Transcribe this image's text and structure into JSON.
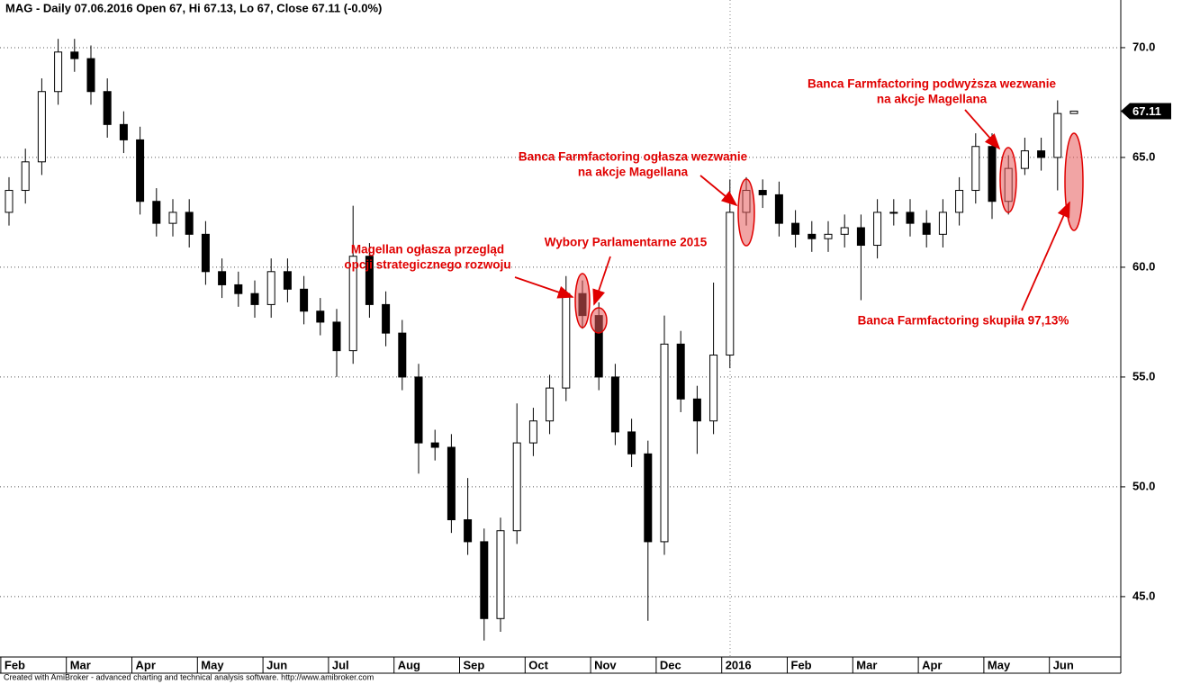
{
  "chart_data": {
    "type": "candlestick",
    "title": "MAG - Daily 07.06.2016 Open 67, Hi 67.13, Lo 67, Close 67.11 (-0.0%)",
    "footer": "Created with AmiBroker - advanced charting and technical analysis software. http://www.amibroker.com",
    "categories": [
      "Feb",
      null,
      null,
      null,
      "Mar",
      null,
      null,
      null,
      "Apr",
      null,
      null,
      null,
      "May",
      null,
      null,
      null,
      "Jun",
      null,
      null,
      null,
      "Jul",
      null,
      null,
      null,
      "Aug",
      null,
      null,
      null,
      "Sep",
      null,
      null,
      null,
      "Oct",
      null,
      null,
      null,
      "Nov",
      null,
      null,
      null,
      "Dec",
      null,
      null,
      null,
      "2016",
      null,
      null,
      null,
      "Feb",
      null,
      null,
      null,
      "Mar",
      null,
      null,
      null,
      "Apr",
      null,
      null,
      null,
      "May",
      null,
      null,
      null,
      "Jun",
      null
    ],
    "open": [
      62.5,
      63.5,
      64.8,
      68.0,
      69.8,
      69.5,
      68.0,
      66.5,
      65.8,
      63.0,
      62.0,
      62.5,
      61.5,
      59.8,
      59.2,
      58.8,
      58.3,
      59.8,
      59.0,
      58.0,
      57.5,
      56.2,
      60.5,
      58.3,
      57.0,
      55.0,
      52.0,
      51.8,
      48.5,
      47.5,
      44.0,
      48.0,
      52.0,
      53.0,
      54.5,
      58.8,
      57.8,
      55.0,
      52.5,
      51.5,
      47.5,
      56.5,
      54.0,
      53.0,
      56.0,
      62.5,
      63.5,
      63.3,
      62.0,
      61.5,
      61.3,
      61.5,
      61.8,
      61.0,
      62.5,
      62.5,
      62.0,
      61.5,
      62.5,
      63.5,
      65.5,
      63.0,
      64.5,
      65.3,
      65.0,
      67
    ],
    "high": [
      64.1,
      65.4,
      68.6,
      70.4,
      70.4,
      70.1,
      68.6,
      67.1,
      66.4,
      63.6,
      63.1,
      63.1,
      62.1,
      60.4,
      59.8,
      59.4,
      60.4,
      60.4,
      59.6,
      58.6,
      58.1,
      62.8,
      61.1,
      58.9,
      57.6,
      55.6,
      52.6,
      52.4,
      50.4,
      48.1,
      48.6,
      53.8,
      53.6,
      55.1,
      59.6,
      59.4,
      58.4,
      55.6,
      53.1,
      52.1,
      57.8,
      57.1,
      54.6,
      59.3,
      64.0,
      64.1,
      64.0,
      63.9,
      62.6,
      62.1,
      62.1,
      62.4,
      62.4,
      63.1,
      63.1,
      63.1,
      62.6,
      63.1,
      64.1,
      66.1,
      66.1,
      65.1,
      65.9,
      65.9,
      67.6,
      67.13
    ],
    "low": [
      61.9,
      62.9,
      64.2,
      67.4,
      68.9,
      67.4,
      65.9,
      65.2,
      62.4,
      61.4,
      61.4,
      60.9,
      59.2,
      58.6,
      58.2,
      57.7,
      57.7,
      58.4,
      57.4,
      56.9,
      55.0,
      55.6,
      57.7,
      56.4,
      54.4,
      50.6,
      51.2,
      47.9,
      46.9,
      43.0,
      43.4,
      47.4,
      51.4,
      52.4,
      53.9,
      57.2,
      54.4,
      51.9,
      50.9,
      43.9,
      46.9,
      53.4,
      51.5,
      52.4,
      55.4,
      61.9,
      62.7,
      61.4,
      60.9,
      60.7,
      60.7,
      60.9,
      58.5,
      60.4,
      61.9,
      61.4,
      60.9,
      60.9,
      61.9,
      62.9,
      62.2,
      62.4,
      64.2,
      64.4,
      63.5,
      67
    ],
    "close": [
      63.5,
      64.8,
      68.0,
      69.8,
      69.5,
      68.0,
      66.5,
      65.8,
      63.0,
      62.0,
      62.5,
      61.5,
      59.8,
      59.2,
      58.8,
      58.3,
      59.8,
      59.0,
      58.0,
      57.5,
      56.2,
      60.5,
      58.3,
      57.0,
      55.0,
      52.0,
      51.8,
      48.5,
      47.5,
      44.0,
      48.0,
      52.0,
      53.0,
      54.5,
      58.8,
      57.8,
      55.0,
      52.5,
      51.5,
      47.5,
      56.5,
      54.0,
      53.0,
      56.0,
      62.5,
      63.5,
      63.3,
      62.0,
      61.5,
      61.3,
      61.5,
      61.8,
      61.0,
      62.5,
      62.5,
      62.0,
      61.5,
      62.5,
      63.5,
      65.5,
      63.0,
      64.5,
      65.3,
      65.0,
      67.0,
      67.11
    ],
    "up_color": "#ffffff",
    "down_color": "#000000",
    "ylim": [
      42.25,
      72.17
    ],
    "yticks": [
      {
        "value": 45,
        "label": "45.0"
      },
      {
        "value": 50,
        "label": "50.0"
      },
      {
        "value": 55,
        "label": "55.0"
      },
      {
        "value": 60,
        "label": "60.0"
      },
      {
        "value": 65,
        "label": "65.0"
      },
      {
        "value": 70,
        "label": "70.0"
      }
    ],
    "grid": true,
    "annotations": [
      {
        "lines": [
          "Magellan ogłasza przegląd",
          "opcji strategicznego rozwoju"
        ]
      },
      {
        "lines": [
          "Wybory Parlamentarne 2015"
        ]
      },
      {
        "lines": [
          "Banca Farmfactoring ogłasza wezwanie",
          "na akcje Magellana"
        ]
      },
      {
        "lines": [
          "Banca Farmfactoring podwyższa wezwanie",
          "na akcje Magellana"
        ]
      },
      {
        "lines": [
          "Banca Farmfactoring skupiła 97,13%"
        ]
      }
    ]
  }
}
